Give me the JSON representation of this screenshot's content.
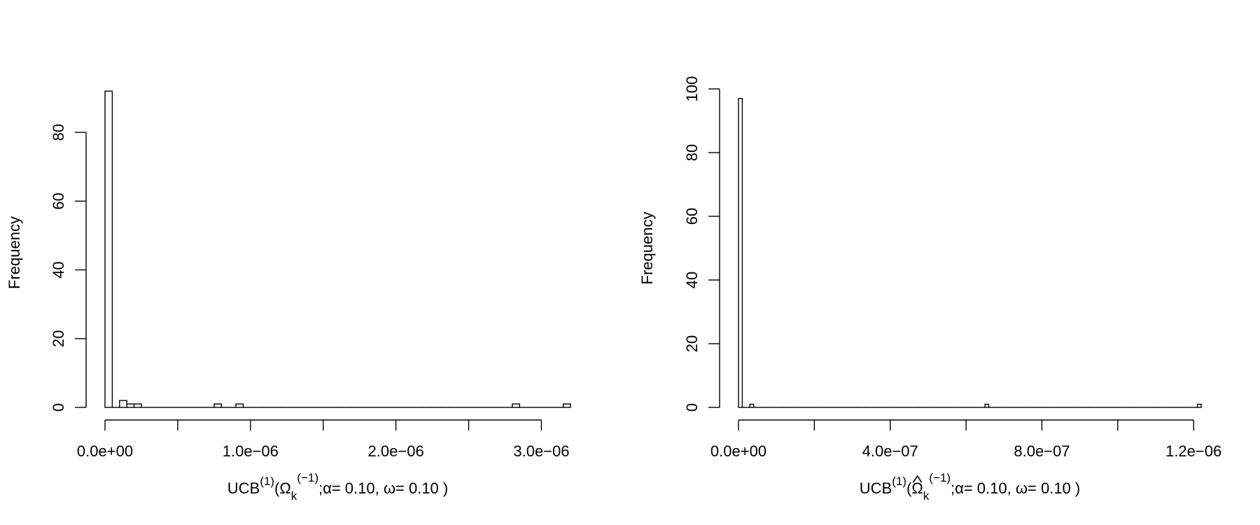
{
  "chart_data": [
    {
      "type": "bar",
      "ylabel": "Frequency",
      "xlabel": {
        "prefix": "UCB",
        "sup1": "(1)",
        "open": "(",
        "symbol": "Ω",
        "sub": "k",
        "sup2": "(−1)",
        "suffix": ";α= 0.10, ω= 0.10 )",
        "hat": false
      },
      "xlim": [
        0,
        3.2e-06
      ],
      "ylim": [
        0,
        90
      ],
      "xticks": [
        0,
        5e-07,
        1e-06,
        1.5e-06,
        2e-06,
        2.5e-06,
        3e-06
      ],
      "xtick_labels": [
        "0.0e+00",
        "",
        "1.0e−06",
        "",
        "2.0e−06",
        "",
        "3.0e−06"
      ],
      "yticks": [
        0,
        20,
        40,
        60,
        80
      ],
      "ytick_labels": [
        "0",
        "20",
        "40",
        "60",
        "80"
      ],
      "bin_width": 5e-08,
      "bins_start": 0,
      "counts": [
        92,
        0,
        2,
        1,
        1,
        0,
        0,
        0,
        0,
        0,
        0,
        0,
        0,
        0,
        0,
        1,
        0,
        0,
        1,
        0,
        0,
        0,
        0,
        0,
        0,
        0,
        0,
        0,
        0,
        0,
        0,
        0,
        0,
        0,
        0,
        0,
        0,
        0,
        0,
        0,
        0,
        0,
        0,
        0,
        0,
        0,
        0,
        0,
        0,
        0,
        0,
        0,
        0,
        0,
        0,
        0,
        1,
        0,
        0,
        0,
        0,
        0,
        0,
        1
      ]
    },
    {
      "type": "bar",
      "ylabel": "Frequency",
      "xlabel": {
        "prefix": "UCB",
        "sup1": "(1)",
        "open": "(",
        "symbol": "Ω",
        "sub": "k",
        "sup2": "(−1)",
        "suffix": ";α= 0.10, ω= 0.10 )",
        "hat": true
      },
      "xlim": [
        0,
        1.22e-06
      ],
      "ylim": [
        0,
        100
      ],
      "xticks": [
        0,
        2e-07,
        4e-07,
        6e-07,
        8e-07,
        1e-06,
        1.2e-06
      ],
      "xtick_labels": [
        "0.0e+00",
        "",
        "4.0e−07",
        "",
        "8.0e−07",
        "",
        "1.2e−06"
      ],
      "yticks": [
        0,
        20,
        40,
        60,
        80,
        100
      ],
      "ytick_labels": [
        "0",
        "20",
        "40",
        "60",
        "80",
        "100"
      ],
      "bin_width": 1e-08,
      "bins_start": 0,
      "counts": [
        97,
        0,
        0,
        1,
        0,
        0,
        0,
        0,
        0,
        0,
        0,
        0,
        0,
        0,
        0,
        0,
        0,
        0,
        0,
        0,
        0,
        0,
        0,
        0,
        0,
        0,
        0,
        0,
        0,
        0,
        0,
        0,
        0,
        0,
        0,
        0,
        0,
        0,
        0,
        0,
        0,
        0,
        0,
        0,
        0,
        0,
        0,
        0,
        0,
        0,
        0,
        0,
        0,
        0,
        0,
        0,
        0,
        0,
        0,
        0,
        0,
        0,
        0,
        0,
        0,
        1,
        0,
        0,
        0,
        0,
        0,
        0,
        0,
        0,
        0,
        0,
        0,
        0,
        0,
        0,
        0,
        0,
        0,
        0,
        0,
        0,
        0,
        0,
        0,
        0,
        0,
        0,
        0,
        0,
        0,
        0,
        0,
        0,
        0,
        0,
        0,
        0,
        0,
        0,
        0,
        0,
        0,
        0,
        0,
        0,
        0,
        0,
        0,
        0,
        0,
        0,
        0,
        0,
        0,
        0,
        0,
        1
      ]
    }
  ]
}
